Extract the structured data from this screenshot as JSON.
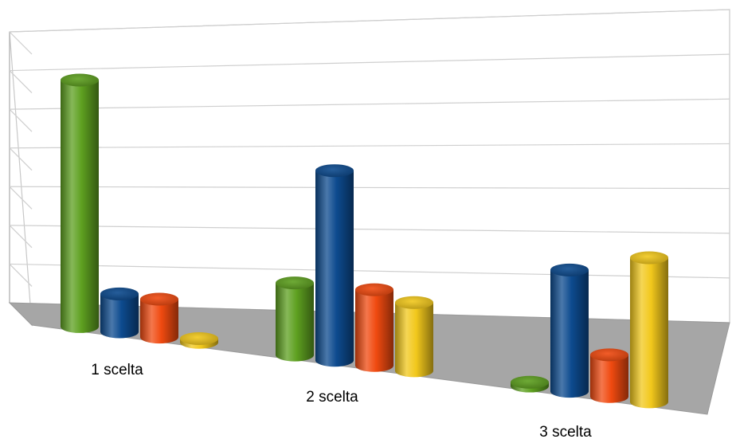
{
  "chart_data": {
    "type": "bar",
    "style": "3d-cylinder",
    "categories": [
      "1 scelta",
      "2 scelta",
      "3 scelta"
    ],
    "series": [
      {
        "color": "#5ea020",
        "values": [
          65,
          19,
          1
        ]
      },
      {
        "color": "#0d4b8f",
        "values": [
          10,
          50,
          32
        ]
      },
      {
        "color": "#f04a10",
        "values": [
          10,
          20,
          11
        ]
      },
      {
        "color": "#f2c81c",
        "values": [
          1,
          18,
          38
        ]
      }
    ],
    "ylim": [
      0,
      70
    ],
    "grid": true,
    "legend": "none",
    "title": "",
    "xlabel": "",
    "ylabel": ""
  }
}
